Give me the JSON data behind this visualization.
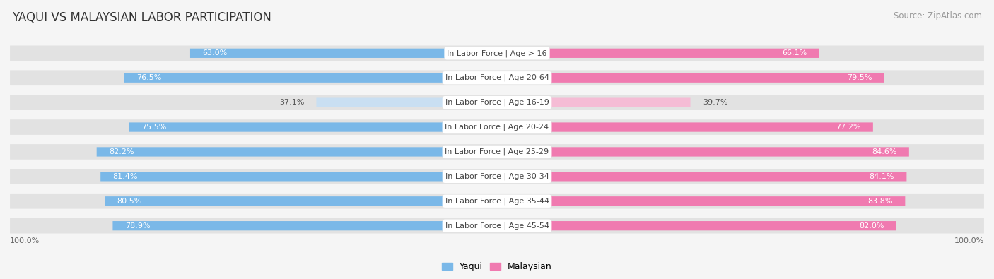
{
  "title": "YAQUI VS MALAYSIAN LABOR PARTICIPATION",
  "source": "Source: ZipAtlas.com",
  "background_color": "#f5f5f5",
  "categories": [
    "In Labor Force | Age > 16",
    "In Labor Force | Age 20-64",
    "In Labor Force | Age 16-19",
    "In Labor Force | Age 20-24",
    "In Labor Force | Age 25-29",
    "In Labor Force | Age 30-34",
    "In Labor Force | Age 35-44",
    "In Labor Force | Age 45-54"
  ],
  "yaqui_values": [
    63.0,
    76.5,
    37.1,
    75.5,
    82.2,
    81.4,
    80.5,
    78.9
  ],
  "malaysian_values": [
    66.1,
    79.5,
    39.7,
    77.2,
    84.6,
    84.1,
    83.8,
    82.0
  ],
  "yaqui_color": "#7ab8e8",
  "yaqui_color_light": "#c9dff2",
  "malaysian_color": "#f07ab0",
  "malaysian_color_light": "#f5bcd5",
  "max_value": 100.0,
  "legend_yaqui": "Yaqui",
  "legend_malaysian": "Malaysian",
  "row_bg_color": "#e2e2e2",
  "title_fontsize": 12,
  "source_fontsize": 8.5,
  "category_fontsize": 8,
  "value_fontsize": 8
}
